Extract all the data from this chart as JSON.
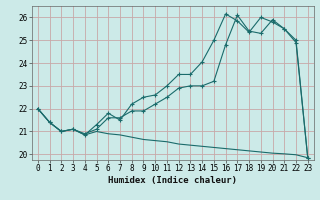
{
  "xlabel": "Humidex (Indice chaleur)",
  "xlim": [
    -0.5,
    23.5
  ],
  "ylim": [
    19.75,
    26.5
  ],
  "yticks": [
    20,
    21,
    22,
    23,
    24,
    25,
    26
  ],
  "xticks": [
    0,
    1,
    2,
    3,
    4,
    5,
    6,
    7,
    8,
    9,
    10,
    11,
    12,
    13,
    14,
    15,
    16,
    17,
    18,
    19,
    20,
    21,
    22,
    23
  ],
  "background_color": "#cceae8",
  "grid_color": "#c8a8a8",
  "line_color": "#1a6b6b",
  "line1_x": [
    0,
    1,
    2,
    3,
    4,
    5,
    6,
    7,
    8,
    9,
    10,
    11,
    12,
    13,
    14,
    15,
    16,
    17,
    18,
    19,
    20,
    21,
    22,
    23
  ],
  "line1_y": [
    22.0,
    21.4,
    21.0,
    21.1,
    20.9,
    21.1,
    21.6,
    21.6,
    21.9,
    21.9,
    22.2,
    22.5,
    22.9,
    23.0,
    23.0,
    23.2,
    24.8,
    26.1,
    25.4,
    25.3,
    25.9,
    25.5,
    24.9,
    19.85
  ],
  "line2_x": [
    0,
    1,
    2,
    3,
    4,
    5,
    6,
    7,
    8,
    9,
    10,
    11,
    12,
    13,
    14,
    15,
    16,
    17,
    18,
    19,
    20,
    21,
    22,
    23
  ],
  "line2_y": [
    22.0,
    21.4,
    21.0,
    21.1,
    20.85,
    21.3,
    21.8,
    21.5,
    22.2,
    22.5,
    22.6,
    23.0,
    23.5,
    23.5,
    24.05,
    25.0,
    26.15,
    25.85,
    25.35,
    26.0,
    25.8,
    25.5,
    25.0,
    19.85
  ],
  "line3_x": [
    0,
    1,
    2,
    3,
    4,
    5,
    6,
    7,
    8,
    9,
    10,
    11,
    12,
    13,
    14,
    15,
    16,
    17,
    18,
    19,
    20,
    21,
    22,
    23
  ],
  "line3_y": [
    22.0,
    21.4,
    21.0,
    21.1,
    20.85,
    21.0,
    20.9,
    20.85,
    20.75,
    20.65,
    20.6,
    20.55,
    20.45,
    20.4,
    20.35,
    20.3,
    20.25,
    20.2,
    20.15,
    20.1,
    20.05,
    20.02,
    19.98,
    19.85
  ]
}
